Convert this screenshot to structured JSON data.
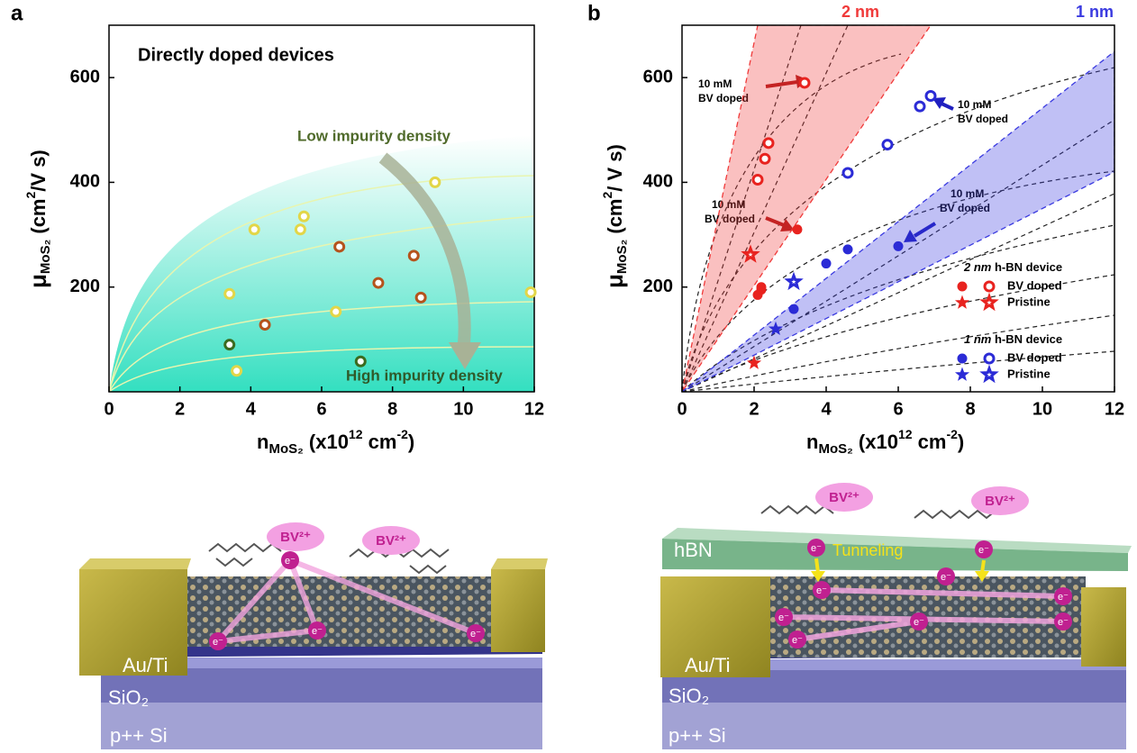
{
  "panel_labels": [
    "a",
    "b"
  ],
  "chart_data": [
    {
      "type": "scatter",
      "annotations": [
        "Directly doped devices",
        "Low impurity density",
        "High impurity density"
      ],
      "xlabel": [
        "n",
        "MoS₂",
        " (x10",
        "12",
        " cm",
        "-2",
        ")"
      ],
      "ylabel": [
        "μ",
        "MoS₂",
        " (cm",
        "2",
        "/V s)"
      ],
      "xlim": [
        0,
        12
      ],
      "ylim": [
        0,
        700
      ],
      "xticks": [
        0,
        2,
        4,
        6,
        8,
        10,
        12
      ],
      "yticks": [
        200,
        400,
        600
      ],
      "series": [
        {
          "color": "#e2d648",
          "marker": "circle",
          "filled": false,
          "x": [
            3.4,
            3.6,
            4.1,
            5.4,
            5.5,
            6.4,
            9.2,
            11.9
          ],
          "values": [
            187,
            40,
            310,
            310,
            335,
            153,
            400,
            190
          ]
        },
        {
          "color": "#b5531c",
          "marker": "circle",
          "filled": false,
          "x": [
            4.4,
            6.5,
            7.6,
            8.6,
            8.8
          ],
          "values": [
            128,
            277,
            208,
            260,
            180
          ]
        },
        {
          "color": "#3b6b1f",
          "marker": "circle",
          "filled": false,
          "x": [
            3.4,
            7.1
          ],
          "values": [
            90,
            58
          ]
        }
      ]
    },
    {
      "type": "scatter",
      "xlabel": [
        "n",
        "MoS₂",
        " (x10",
        "12",
        " cm",
        "-2",
        ")"
      ],
      "ylabel": [
        "μ",
        "MoS₂",
        " (cm",
        "2",
        "/ V s)"
      ],
      "xlim": [
        0,
        12
      ],
      "ylim": [
        0,
        700
      ],
      "xticks": [
        0,
        2,
        4,
        6,
        8,
        10,
        12
      ],
      "yticks": [
        200,
        400,
        600
      ],
      "bands": [
        {
          "label": "2 nm",
          "color": "#f03a3a",
          "x": [
            0,
            2.1,
            6.9
          ],
          "y": [
            0,
            700,
            700
          ]
        },
        {
          "label": "1 nm",
          "color": "#3a3ae0",
          "x": [
            0,
            12,
            12
          ],
          "y": [
            0,
            650,
            420
          ]
        }
      ],
      "annotations": [
        [
          "10 mM",
          "BV doped"
        ],
        [
          "10 mM",
          "BV doped"
        ],
        [
          "10 mM",
          "BV doped"
        ],
        [
          "10 mM",
          "BV doped"
        ]
      ],
      "series": [
        {
          "color": "#e8231f",
          "marker": "circle",
          "filled": true,
          "x": [
            2.1,
            2.2,
            2.2,
            3.2
          ],
          "values": [
            185,
            195,
            200,
            310
          ]
        },
        {
          "color": "#e8231f",
          "marker": "circle",
          "filled": false,
          "x": [
            2.1,
            2.3,
            2.4,
            3.4
          ],
          "values": [
            405,
            445,
            475,
            590
          ]
        },
        {
          "color": "#e8231f",
          "marker": "star",
          "filled": true,
          "x": [
            2.0
          ],
          "values": [
            55
          ]
        },
        {
          "color": "#e8231f",
          "marker": "star",
          "filled": false,
          "x": [
            1.9
          ],
          "values": [
            262
          ]
        },
        {
          "color": "#2b2bd6",
          "marker": "circle",
          "filled": true,
          "x": [
            3.1,
            4.0,
            4.6,
            6.0
          ],
          "values": [
            158,
            245,
            272,
            278
          ]
        },
        {
          "color": "#2b2bd6",
          "marker": "circle",
          "filled": false,
          "x": [
            4.6,
            5.7,
            6.6,
            6.9
          ],
          "values": [
            418,
            472,
            545,
            565
          ]
        },
        {
          "color": "#2b2bd6",
          "marker": "star",
          "filled": true,
          "x": [
            2.6
          ],
          "values": [
            120
          ]
        },
        {
          "color": "#2b2bd6",
          "marker": "star",
          "filled": false,
          "x": [
            3.1
          ],
          "values": [
            210
          ]
        }
      ],
      "legend": [
        {
          "title": [
            "2 nm",
            " h-BN device"
          ],
          "entries": [
            "BV doped",
            "Pristine"
          ]
        },
        {
          "title": [
            "1 nm",
            " h-BN device"
          ],
          "entries": [
            "BV doped",
            "Pristine"
          ]
        }
      ]
    }
  ],
  "illustrations": {
    "left": {
      "molecule": "BV²⁺",
      "electron": "e⁻",
      "layers": [
        "Au/Ti",
        "SiO₂",
        "p++ Si"
      ]
    },
    "right": {
      "molecule": "BV²⁺",
      "electron": "e⁻",
      "layers": [
        "Au/Ti",
        "SiO₂",
        "p++ Si"
      ],
      "barrier": "hBN",
      "process": "Tunneling"
    }
  }
}
